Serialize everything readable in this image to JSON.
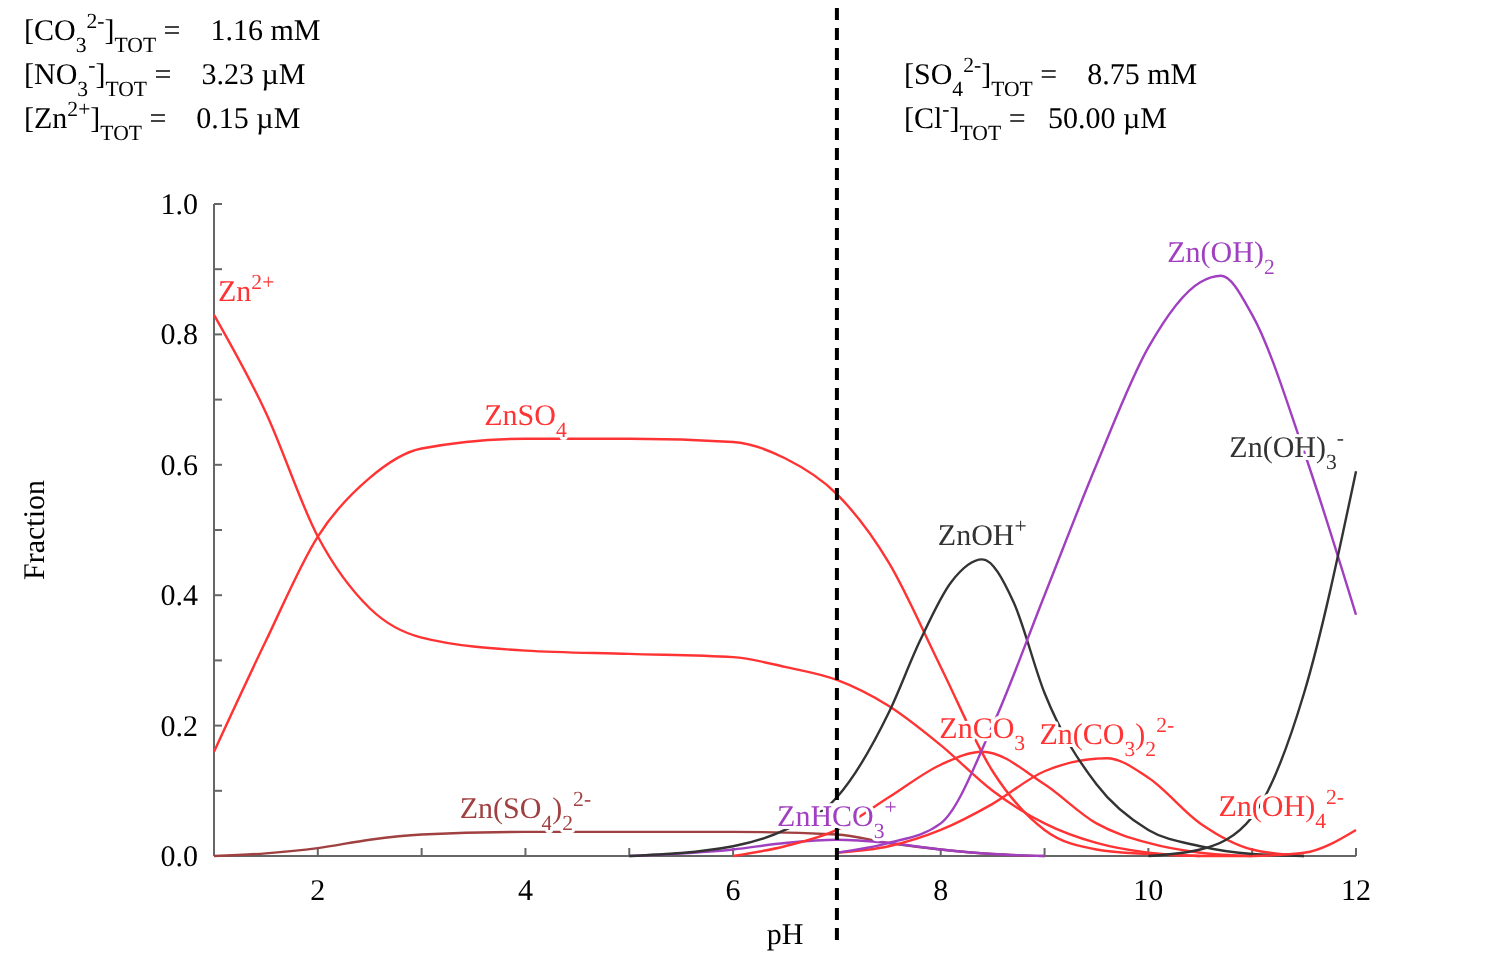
{
  "chart_data": {
    "type": "line",
    "xlabel": "pH",
    "ylabel": "Fraction",
    "xlim": [
      1,
      12
    ],
    "ylim": [
      0,
      1.0
    ],
    "xticks": [
      {
        "value": 1,
        "label": null
      },
      2,
      {
        "value": 3,
        "label": null
      },
      4,
      {
        "value": 5,
        "label": null
      },
      6,
      {
        "value": 7,
        "label": null
      },
      8,
      {
        "value": 9,
        "label": null
      },
      10,
      {
        "value": 11,
        "label": null
      },
      12
    ],
    "yticks": [
      {
        "value": 0,
        "label": "0.0"
      },
      {
        "value": 0.1,
        "label": null
      },
      {
        "value": 0.2,
        "label": "0.2"
      },
      {
        "value": 0.3,
        "label": null
      },
      {
        "value": 0.4,
        "label": "0.4"
      },
      {
        "value": 0.5,
        "label": null
      },
      {
        "value": 0.6,
        "label": "0.6"
      },
      {
        "value": 0.7,
        "label": null
      },
      {
        "value": 0.8,
        "label": "0.8"
      },
      {
        "value": 0.9,
        "label": null
      },
      {
        "value": 1.0,
        "label": "1.0"
      }
    ],
    "grid": false,
    "legend": false,
    "marker": "none",
    "line_style": "solid",
    "annotations": [
      "[CO$_{3}$$^{2-}$]$_{TOT}$ =    1.16 mM",
      "[NO$_{3}$$^{-}$]$_{TOT}$ =    3.23 µM",
      "[Zn$^{2+}$]$_{TOT}$ =    0.15 µM",
      "[SO$_{4}$$^{2-}$]$_{TOT}$ =    8.75 mM",
      "[Cl$^{-}$]$_{TOT}$ =   50.00 µM"
    ],
    "ref_lines": [
      {
        "axis": "x",
        "value": 7,
        "color": "#000000",
        "line_style": "dashed"
      }
    ],
    "series": [
      {
        "name": "Zn$^{2+}$",
        "color": "#ff3333",
        "x": [
          1,
          1.5,
          2,
          2.5,
          3,
          4,
          5,
          6,
          6.5,
          7,
          7.5,
          8,
          8.5,
          9,
          9.5,
          10,
          10.5,
          11
        ],
        "values": [
          0.83,
          0.68,
          0.49,
          0.38,
          0.335,
          0.315,
          0.31,
          0.305,
          0.29,
          0.27,
          0.23,
          0.17,
          0.1,
          0.05,
          0.02,
          0.005,
          0,
          0
        ]
      },
      {
        "name": "ZnSO$_{4}$",
        "color": "#ff3333",
        "x": [
          1,
          1.5,
          2,
          2.5,
          3,
          4,
          5,
          6,
          6.5,
          7,
          7.5,
          8,
          8.5,
          9,
          9.5,
          10,
          10.5
        ],
        "values": [
          0.16,
          0.33,
          0.49,
          0.58,
          0.625,
          0.64,
          0.64,
          0.635,
          0.61,
          0.555,
          0.45,
          0.29,
          0.13,
          0.04,
          0.01,
          0.003,
          0
        ]
      },
      {
        "name": "Zn(SO$_{4}$)$_{2}$$^{2-}$",
        "color": "#a04040",
        "x": [
          1,
          1.5,
          2,
          2.5,
          3,
          4,
          5,
          6,
          7,
          7.5,
          8,
          8.5,
          9
        ],
        "values": [
          0,
          0.004,
          0.012,
          0.025,
          0.033,
          0.037,
          0.037,
          0.037,
          0.033,
          0.02,
          0.01,
          0.003,
          0
        ]
      },
      {
        "name": "ZnHCO$_{3}$$^{+}$",
        "color": "#a040c0",
        "x": [
          5,
          6,
          6.5,
          7,
          7.5,
          8,
          8.5,
          9
        ],
        "values": [
          0,
          0.01,
          0.02,
          0.025,
          0.02,
          0.01,
          0.003,
          0
        ]
      },
      {
        "name": "ZnCO$_{3}$",
        "color": "#ff3333",
        "x": [
          6,
          6.5,
          7,
          7.5,
          8,
          8.4,
          9,
          9.5,
          10,
          10.5,
          11
        ],
        "values": [
          0,
          0.015,
          0.04,
          0.09,
          0.14,
          0.16,
          0.11,
          0.05,
          0.02,
          0.005,
          0
        ]
      },
      {
        "name": "Zn(CO$_{3}$)$_{2}$$^{2-}$",
        "color": "#ff3333",
        "x": [
          7,
          7.5,
          8,
          8.5,
          9,
          9.6,
          10,
          10.5,
          11,
          11.5
        ],
        "values": [
          0.005,
          0.015,
          0.04,
          0.08,
          0.13,
          0.15,
          0.12,
          0.05,
          0.01,
          0
        ]
      },
      {
        "name": "ZnOH$^{+}$",
        "color": "#333333",
        "x": [
          5,
          6,
          6.5,
          7,
          7.5,
          7.8,
          8.1,
          8.4,
          8.7,
          9,
          9.5,
          10,
          10.5,
          11,
          11.5
        ],
        "values": [
          0,
          0.015,
          0.04,
          0.09,
          0.22,
          0.33,
          0.42,
          0.455,
          0.39,
          0.25,
          0.11,
          0.04,
          0.015,
          0.003,
          0
        ]
      },
      {
        "name": "Zn(OH)$_{2}$",
        "color": "#a040c0",
        "x": [
          7,
          7.5,
          8,
          8.5,
          9,
          9.5,
          10,
          10.5,
          10.7,
          11,
          11.5,
          12
        ],
        "values": [
          0.005,
          0.02,
          0.05,
          0.2,
          0.4,
          0.6,
          0.78,
          0.88,
          0.89,
          0.83,
          0.62,
          0.37
        ]
      },
      {
        "name": "Zn(OH)$_{3}$$^{-}$",
        "color": "#333333",
        "x": [
          10,
          10.5,
          11,
          11.5,
          12
        ],
        "values": [
          0,
          0.01,
          0.06,
          0.25,
          0.59
        ]
      },
      {
        "name": "Zn(OH)$_{4}$$^{2-}$",
        "color": "#ff3333",
        "x": [
          11,
          11.5,
          12
        ],
        "values": [
          0,
          0.005,
          0.04
        ]
      }
    ]
  }
}
